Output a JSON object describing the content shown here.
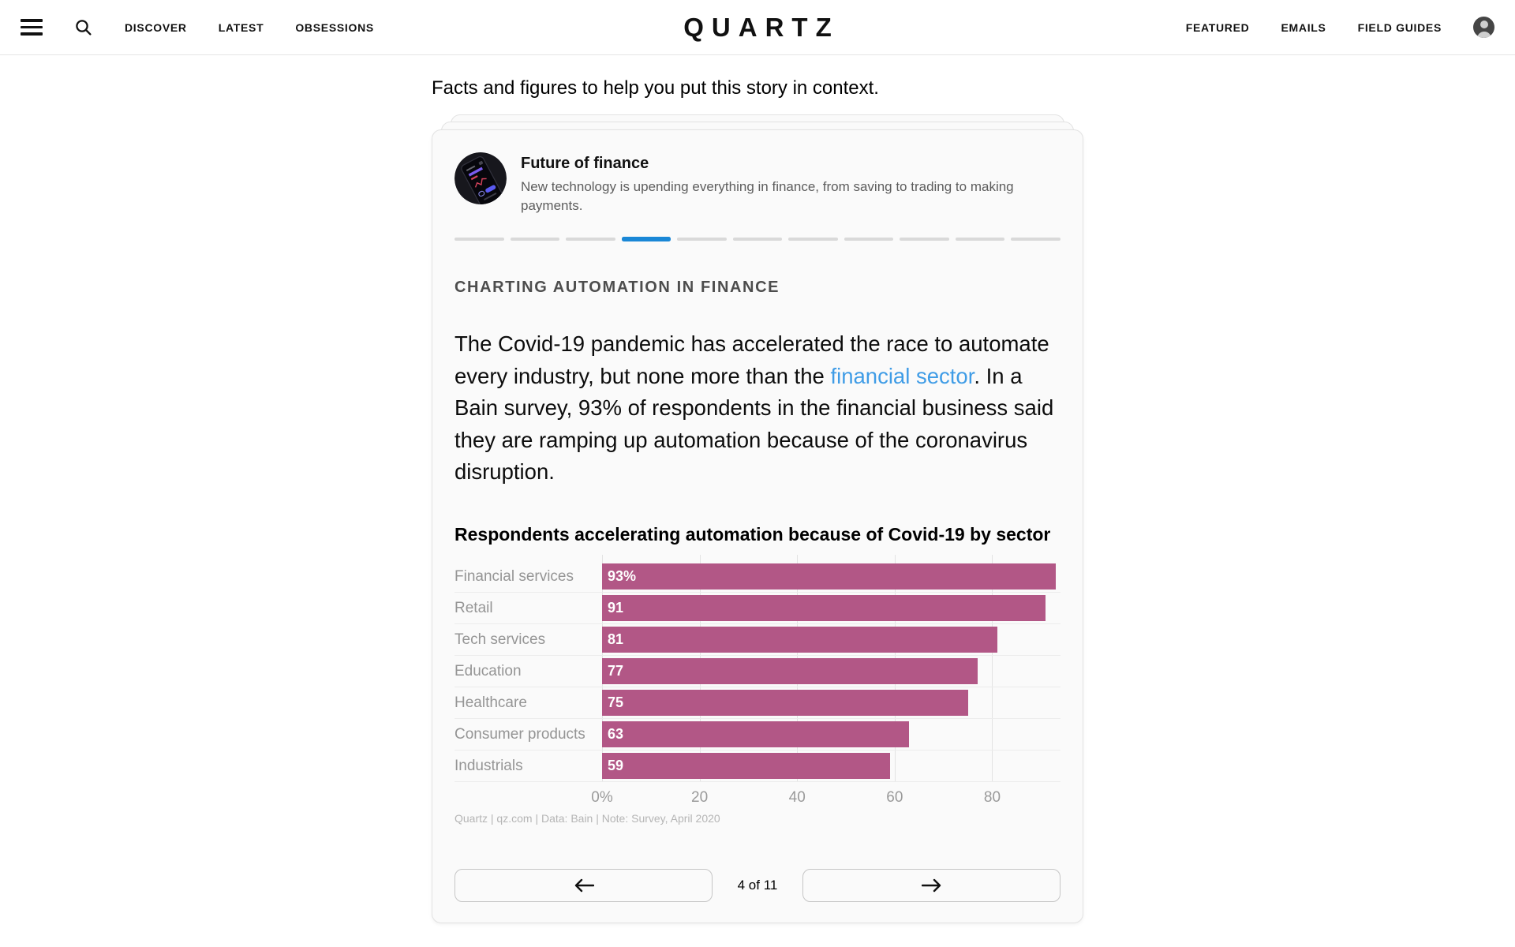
{
  "nav": {
    "left": [
      "DISCOVER",
      "LATEST",
      "OBSESSIONS"
    ],
    "logo": "QUARTZ",
    "right": [
      "FEATURED",
      "EMAILS",
      "FIELD GUIDES"
    ]
  },
  "page": {
    "context_heading": "Facts and figures to help you put this story in context."
  },
  "card": {
    "series": {
      "title": "Future of finance",
      "description": "New technology is upending everything in finance, from saving to trading to making payments."
    },
    "progress": {
      "total": 11,
      "current": 4
    },
    "section_heading": "CHARTING AUTOMATION IN FINANCE",
    "paragraph": {
      "before_link": "The Covid-19 pandemic has accelerated the race to automate every industry, but none more than the ",
      "link": "financial sector",
      "after_link": ". In a Bain survey, 93% of respondents in the financial business said they are ramping up automation because of the coronavirus disruption."
    },
    "pager": {
      "position": "4 of 11"
    }
  },
  "chart_data": {
    "type": "bar",
    "orientation": "horizontal",
    "title": "Respondents accelerating automation because of Covid-19 by sector",
    "categories": [
      "Financial services",
      "Retail",
      "Tech services",
      "Education",
      "Healthcare",
      "Consumer products",
      "Industrials"
    ],
    "values": [
      93,
      91,
      81,
      77,
      75,
      63,
      59
    ],
    "value_labels": [
      "93%",
      "91",
      "81",
      "77",
      "75",
      "63",
      "59"
    ],
    "xlim": [
      0,
      94
    ],
    "ticks": {
      "values": [
        0,
        20,
        40,
        60,
        80
      ],
      "labels": [
        "0%",
        "20",
        "40",
        "60",
        "80"
      ]
    },
    "grid": "vertical",
    "legend": "none",
    "bar_color": "#b25786",
    "source": "Quartz | qz.com | Data: Bain | Note: Survey, April 2020"
  },
  "colors": {
    "accent_blue": "#1a87d6",
    "link_blue": "#3f9ce6",
    "bar": "#b25786",
    "progress_inactive": "#d9d9d9"
  }
}
